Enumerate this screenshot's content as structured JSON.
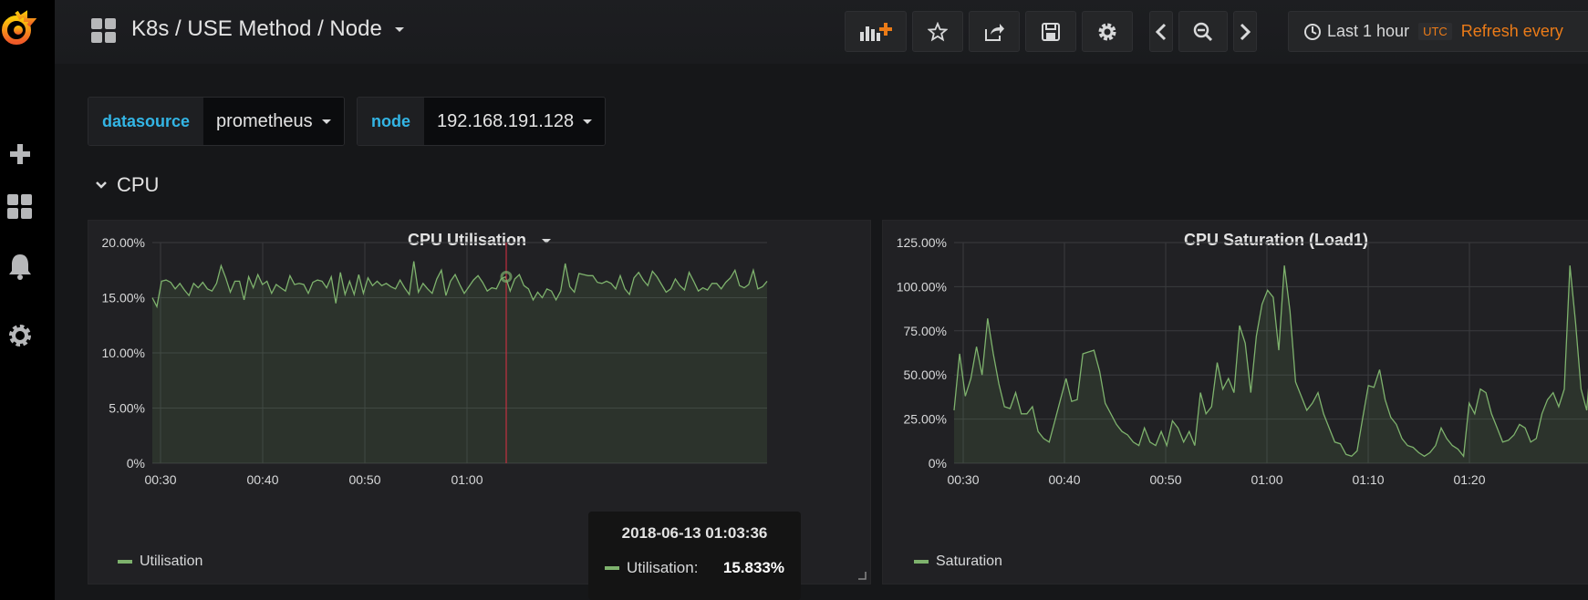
{
  "nav": {
    "dashboard_title": "K8s / USE Method / Node",
    "time_range": "Last 1 hour",
    "timezone": "UTC",
    "refresh_label": "Refresh every"
  },
  "variables": [
    {
      "label": "datasource",
      "value": "prometheus"
    },
    {
      "label": "node",
      "value": "192.168.191.128"
    }
  ],
  "row": {
    "title": "CPU"
  },
  "panels": {
    "cpu_util": {
      "title": "CPU Utilisation",
      "legend": "Utilisation"
    },
    "cpu_sat": {
      "title": "CPU Saturation (Load1)",
      "legend": "Saturation"
    }
  },
  "tooltip": {
    "time": "2018-06-13 01:03:36",
    "series": "Utilisation:",
    "value": "15.833%"
  },
  "colors": {
    "series": "#7eb26d",
    "accent": "#eb7b18",
    "var_label": "#33b5e5",
    "crosshair": "#e02f44"
  },
  "chart_data": [
    {
      "type": "area",
      "title": "CPU Utilisation",
      "series": [
        {
          "name": "Utilisation",
          "values": [
            15.0,
            14.2,
            16.5,
            16.6,
            16.4,
            15.8,
            16.3,
            15.7,
            15.2,
            16.3,
            15.9,
            16.4,
            15.8,
            15.6,
            16.3,
            17.9,
            16.8,
            15.5,
            16.5,
            16.5,
            14.8,
            16.9,
            15.9,
            17.1,
            16.2,
            16.5,
            15.4,
            16.2,
            15.9,
            15.6,
            17.0,
            16.2,
            16.3,
            16.2,
            15.4,
            16.4,
            16.6,
            16.5,
            15.9,
            16.9,
            14.5,
            17.3,
            15.3,
            16.5,
            15.3,
            17.1,
            15.4,
            16.8,
            16.1,
            16.5,
            16.1,
            16.3,
            16.0,
            15.8,
            16.6,
            15.9,
            15.3,
            18.3,
            15.5,
            16.3,
            15.8,
            15.4,
            16.7,
            17.5,
            15.2,
            16.5,
            17.1,
            16.2,
            15.4,
            16.0,
            16.6,
            17.0,
            16.4,
            15.6,
            15.9,
            15.8,
            16.7,
            16.9,
            15.6,
            16.7,
            17.1,
            16.1,
            15.8,
            14.8,
            15.5,
            15.0,
            15.8,
            15.6,
            14.8,
            15.6,
            18.1,
            16.0,
            15.5,
            17.2,
            17.1,
            17.0,
            17.0,
            16.4,
            16.3,
            16.5,
            16.3,
            15.8,
            17.0,
            15.8,
            15.3,
            16.8,
            17.3,
            16.6,
            16.1,
            17.4,
            16.9,
            16.2,
            15.5,
            15.8,
            16.7,
            16.1,
            15.7,
            17.3,
            16.5,
            15.6,
            15.9,
            15.7,
            16.3,
            16.3,
            15.8,
            16.4,
            16.8,
            17.5,
            16.1,
            15.9,
            16.2,
            17.5,
            15.8,
            16.0,
            16.5
          ]
        }
      ],
      "x_ticks": [
        "00:30",
        "00:40",
        "00:50",
        "01:00"
      ],
      "y_ticks": [
        "20.00%",
        "15.00%",
        "10.00%",
        "5.00%",
        "0%"
      ],
      "ylim": [
        0,
        20
      ],
      "grid": true,
      "legend_position": "bottom-left"
    },
    {
      "type": "area",
      "title": "CPU Saturation (Load1)",
      "series": [
        {
          "name": "Saturation",
          "values": [
            30,
            62,
            38,
            48,
            66,
            50,
            82,
            62,
            45,
            32,
            31,
            40,
            28,
            28,
            32,
            18,
            14,
            12,
            24,
            36,
            48,
            35,
            36,
            62,
            63,
            64,
            52,
            34,
            28,
            22,
            18,
            16,
            12,
            10,
            20,
            12,
            10,
            18,
            10,
            24,
            20,
            12,
            18,
            10,
            40,
            28,
            32,
            57,
            42,
            48,
            40,
            78,
            68,
            40,
            72,
            90,
            98,
            94,
            64,
            112,
            86,
            46,
            38,
            30,
            34,
            40,
            28,
            20,
            12,
            11,
            5,
            4,
            7,
            26,
            44,
            43,
            53,
            36,
            26,
            22,
            14,
            10,
            9,
            6,
            4,
            6,
            10,
            20,
            14,
            10,
            8,
            4,
            34,
            28,
            42,
            40,
            28,
            20,
            12,
            13,
            16,
            22,
            20,
            12,
            14,
            28,
            36,
            40,
            32,
            42,
            112,
            80,
            42,
            30,
            68,
            50,
            64
          ]
        }
      ],
      "x_ticks": [
        "00:30",
        "00:40",
        "00:50",
        "01:00",
        "01:10",
        "01:20"
      ],
      "y_ticks": [
        "125.00%",
        "100.00%",
        "75.00%",
        "50.00%",
        "25.00%",
        "0%"
      ],
      "ylim": [
        0,
        125
      ],
      "grid": true,
      "legend_position": "bottom-left"
    }
  ]
}
